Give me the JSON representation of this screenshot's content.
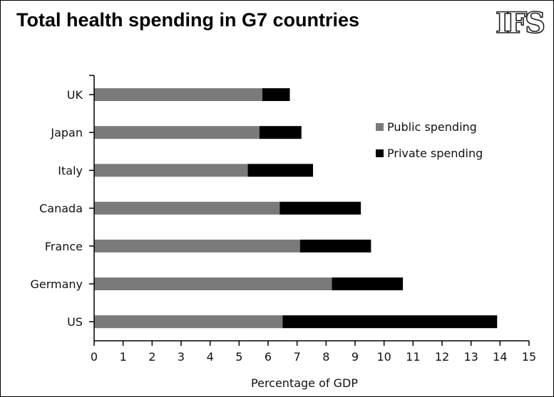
{
  "chart_data": {
    "type": "bar",
    "orientation": "horizontal",
    "stacked": true,
    "title": "Total health spending in G7 countries",
    "logo_text": "IFS",
    "xlabel": "Percentage of GDP",
    "ylabel": "",
    "xlim": [
      0,
      15
    ],
    "xticks": [
      0,
      1,
      2,
      3,
      4,
      5,
      6,
      7,
      8,
      9,
      10,
      11,
      12,
      13,
      14,
      15
    ],
    "grid": false,
    "legend_position": "right",
    "categories": [
      "UK",
      "Japan",
      "Italy",
      "Canada",
      "France",
      "Germany",
      "US"
    ],
    "series": [
      {
        "name": "Public spending",
        "color": "#7a7a7a",
        "values": [
          5.8,
          5.7,
          5.3,
          6.4,
          7.1,
          8.2,
          6.5
        ]
      },
      {
        "name": "Private spending",
        "color": "#000000",
        "values": [
          0.95,
          1.45,
          2.25,
          2.8,
          2.45,
          2.45,
          7.4
        ]
      }
    ]
  }
}
